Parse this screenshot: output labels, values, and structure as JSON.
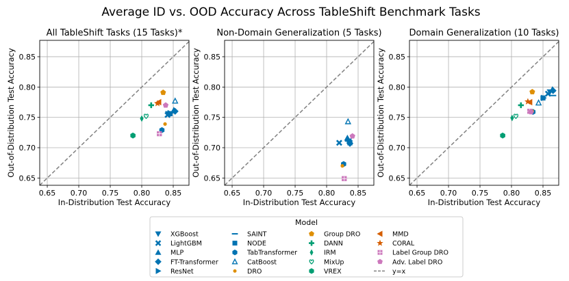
{
  "figure_title": "Average ID vs. OOD Accuracy Across TableShift Benchmark Tasks",
  "colors": {
    "blue": "#0173b2",
    "orange": "#de8f05",
    "green": "#029e73",
    "vermilion": "#d55e00",
    "pink": "#cc78bc",
    "diag": "#808080",
    "grid": "#b0b0b0"
  },
  "legend": {
    "title": "Model",
    "entries": [
      {
        "label": "XGBoost",
        "marker": "tri-down",
        "color": "blue"
      },
      {
        "label": "LightGBM",
        "marker": "x",
        "color": "blue"
      },
      {
        "label": "MLP",
        "marker": "tri-up",
        "color": "blue"
      },
      {
        "label": "FT-Transformer",
        "marker": "diamond",
        "color": "blue"
      },
      {
        "label": "ResNet",
        "marker": "tri-right",
        "color": "blue"
      },
      {
        "label": "SAINT",
        "marker": "hline",
        "color": "blue"
      },
      {
        "label": "NODE",
        "marker": "square",
        "color": "blue"
      },
      {
        "label": "TabTransformer",
        "marker": "hexagon",
        "color": "blue"
      },
      {
        "label": "CatBoost",
        "marker": "tri-up-open",
        "color": "blue"
      },
      {
        "label": "DRO",
        "marker": "circle-small",
        "color": "orange"
      },
      {
        "label": "Group DRO",
        "marker": "pentagon",
        "color": "orange"
      },
      {
        "label": "DANN",
        "marker": "plus",
        "color": "green"
      },
      {
        "label": "IRM",
        "marker": "thin-diamond",
        "color": "green"
      },
      {
        "label": "MixUp",
        "marker": "heart",
        "color": "green"
      },
      {
        "label": "VREX",
        "marker": "hexagon",
        "color": "green"
      },
      {
        "label": "MMD",
        "marker": "tri-left",
        "color": "vermilion"
      },
      {
        "label": "CORAL",
        "marker": "star",
        "color": "vermilion"
      },
      {
        "label": "Label Group DRO",
        "marker": "square-plus",
        "color": "pink"
      },
      {
        "label": "Adv. Label DRO",
        "marker": "pentagon",
        "color": "pink"
      },
      {
        "label": "y=x",
        "marker": "dashline",
        "color": "diag"
      }
    ]
  },
  "chart_data": [
    {
      "type": "scatter",
      "title": "All TableShift Tasks (15 Tasks)*",
      "xlabel": "In-Distribution Test Accuracy",
      "ylabel": "Out-of-Distribution Test Accuracy",
      "xlim": [
        0.638,
        0.875
      ],
      "ylim": [
        0.638,
        0.877
      ],
      "xticks": [
        "0.65",
        "0.70",
        "0.75",
        "0.80",
        "0.85"
      ],
      "yticks": [
        "0.65",
        "0.70",
        "0.75",
        "0.80",
        "0.85"
      ],
      "grid": true,
      "points": [
        {
          "model": "XGBoost",
          "x": 0.842,
          "y": 0.756
        },
        {
          "model": "LightGBM",
          "x": 0.841,
          "y": 0.754
        },
        {
          "model": "MLP",
          "x": 0.851,
          "y": 0.762
        },
        {
          "model": "FT-Transformer",
          "x": 0.853,
          "y": 0.76
        },
        {
          "model": "ResNet",
          "x": 0.845,
          "y": 0.757
        },
        {
          "model": "SAINT",
          "x": 0.848,
          "y": 0.758
        },
        {
          "model": "NODE",
          "x": 0.845,
          "y": 0.756
        },
        {
          "model": "TabTransformer",
          "x": 0.832,
          "y": 0.729
        },
        {
          "model": "CatBoost",
          "x": 0.853,
          "y": 0.777
        },
        {
          "model": "DRO",
          "x": 0.837,
          "y": 0.739
        },
        {
          "model": "Group DRO",
          "x": 0.834,
          "y": 0.791
        },
        {
          "model": "DANN",
          "x": 0.815,
          "y": 0.77
        },
        {
          "model": "IRM",
          "x": 0.8,
          "y": 0.748
        },
        {
          "model": "MixUp",
          "x": 0.807,
          "y": 0.752
        },
        {
          "model": "VREX",
          "x": 0.786,
          "y": 0.72
        },
        {
          "model": "MMD",
          "x": 0.827,
          "y": 0.775
        },
        {
          "model": "CORAL",
          "x": 0.825,
          "y": 0.773
        },
        {
          "model": "Label Group DRO",
          "x": 0.828,
          "y": 0.723
        },
        {
          "model": "Adv. Label DRO",
          "x": 0.838,
          "y": 0.77
        }
      ]
    },
    {
      "type": "scatter",
      "title": "Non-Domain Generalization (5 Tasks)",
      "xlabel": "In-Distribution Test Accuracy",
      "ylabel": "Out-of-Distribution Test Accuracy",
      "xlim": [
        0.638,
        0.875
      ],
      "ylim": [
        0.638,
        0.877
      ],
      "xticks": [
        "0.65",
        "0.70",
        "0.75",
        "0.80",
        "0.85"
      ],
      "yticks": [
        "0.65",
        "0.70",
        "0.75",
        "0.80",
        "0.85"
      ],
      "grid": true,
      "points": [
        {
          "model": "XGBoost",
          "x": 0.835,
          "y": 0.711
        },
        {
          "model": "LightGBM",
          "x": 0.82,
          "y": 0.708
        },
        {
          "model": "MLP",
          "x": 0.833,
          "y": 0.716
        },
        {
          "model": "FT-Transformer",
          "x": 0.837,
          "y": 0.707
        },
        {
          "model": "ResNet",
          "x": 0.836,
          "y": 0.712
        },
        {
          "model": "SAINT",
          "x": 0.834,
          "y": 0.711
        },
        {
          "model": "NODE",
          "x": 0.837,
          "y": 0.708
        },
        {
          "model": "TabTransformer",
          "x": 0.827,
          "y": 0.673
        },
        {
          "model": "CatBoost",
          "x": 0.834,
          "y": 0.743
        },
        {
          "model": "DRO",
          "x": 0.825,
          "y": 0.67
        },
        {
          "model": "Label Group DRO",
          "x": 0.828,
          "y": 0.649
        },
        {
          "model": "Adv. Label DRO",
          "x": 0.841,
          "y": 0.719
        }
      ]
    },
    {
      "type": "scatter",
      "title": "Domain Generalization (10 Tasks)",
      "xlabel": "In-Distribution Test Accuracy",
      "ylabel": "Out-of-Distribution Test Accuracy",
      "xlim": [
        0.638,
        0.875
      ],
      "ylim": [
        0.638,
        0.877
      ],
      "xticks": [
        "0.65",
        "0.70",
        "0.75",
        "0.80",
        "0.85"
      ],
      "yticks": [
        "0.65",
        "0.70",
        "0.75",
        "0.80",
        "0.85"
      ],
      "grid": true,
      "points": [
        {
          "model": "XGBoost",
          "x": 0.861,
          "y": 0.792
        },
        {
          "model": "LightGBM",
          "x": 0.858,
          "y": 0.789
        },
        {
          "model": "MLP",
          "x": 0.865,
          "y": 0.796
        },
        {
          "model": "FT-Transformer",
          "x": 0.866,
          "y": 0.794
        },
        {
          "model": "ResNet",
          "x": 0.851,
          "y": 0.782
        },
        {
          "model": "SAINT",
          "x": 0.866,
          "y": 0.786
        },
        {
          "model": "NODE",
          "x": 0.85,
          "y": 0.782
        },
        {
          "model": "TabTransformer",
          "x": 0.834,
          "y": 0.759
        },
        {
          "model": "CatBoost",
          "x": 0.843,
          "y": 0.774
        },
        {
          "model": "DRO",
          "x": 0.833,
          "y": 0.76
        },
        {
          "model": "Group DRO",
          "x": 0.833,
          "y": 0.792
        },
        {
          "model": "DANN",
          "x": 0.815,
          "y": 0.77
        },
        {
          "model": "IRM",
          "x": 0.801,
          "y": 0.749
        },
        {
          "model": "MixUp",
          "x": 0.807,
          "y": 0.752
        },
        {
          "model": "VREX",
          "x": 0.786,
          "y": 0.72
        },
        {
          "model": "MMD",
          "x": 0.829,
          "y": 0.775
        },
        {
          "model": "CORAL",
          "x": 0.826,
          "y": 0.776
        },
        {
          "model": "Label Group DRO",
          "x": 0.829,
          "y": 0.76
        },
        {
          "model": "Adv. Label DRO",
          "x": 0.831,
          "y": 0.759
        }
      ]
    }
  ]
}
